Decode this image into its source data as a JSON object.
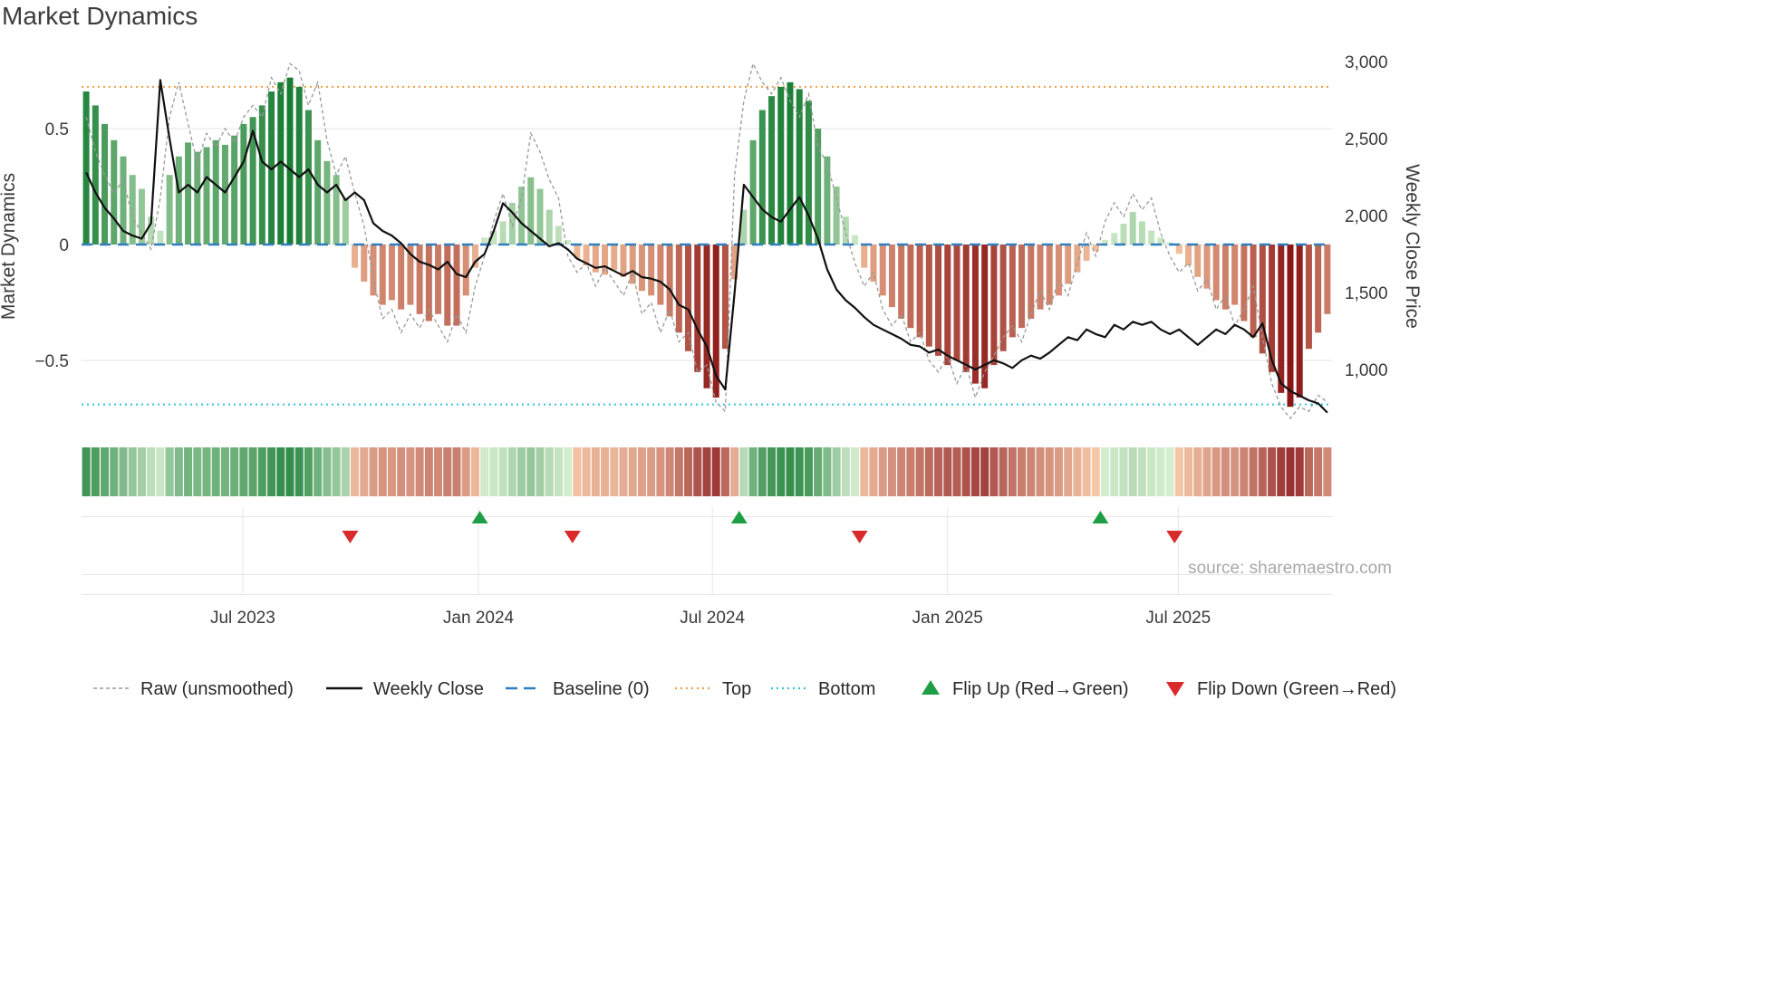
{
  "title": "Market Dynamics",
  "source": "source: sharemaestro.com",
  "y_left": {
    "label": "Market Dynamics",
    "ticks": [
      "0.5",
      "0",
      "−0.5"
    ],
    "tick_values": [
      0.5,
      0,
      -0.5
    ]
  },
  "y_right": {
    "label": "Weekly Close Price",
    "ticks": [
      "3,000",
      "2,500",
      "2,000",
      "1,500",
      "1,000"
    ],
    "tick_values": [
      3000,
      2500,
      2000,
      1500,
      1000
    ]
  },
  "x_ticks": [
    {
      "label": "Jul 2023",
      "week": 16.9
    },
    {
      "label": "Jan 2024",
      "week": 42.35
    },
    {
      "label": "Jul 2024",
      "week": 67.6
    },
    {
      "label": "Jan 2025",
      "week": 93.0
    },
    {
      "label": "Jul 2025",
      "week": 117.9
    }
  ],
  "legend": [
    {
      "type": "dashed-gray",
      "label": "Raw (unsmoothed)"
    },
    {
      "type": "solid-black",
      "label": "Weekly Close"
    },
    {
      "type": "dashed-blue",
      "label": "Baseline (0)"
    },
    {
      "type": "dotted-orange",
      "label": "Top"
    },
    {
      "type": "dotted-cyan",
      "label": "Bottom"
    },
    {
      "type": "triangle-up",
      "label": "Flip Up (Red→Green)"
    },
    {
      "type": "triangle-down",
      "label": "Flip Down (Green→Red)"
    }
  ],
  "colors": {
    "green_dark": "#177d32",
    "green_light": "#d2ecca",
    "red_dark": "#8b1515",
    "red_light": "#f8c7a1",
    "baseline": "#2f7ebe",
    "top": "#f0a04b",
    "bottom": "#35c0e0",
    "raw_line": "#999999",
    "close_line": "#111111",
    "flip_up": "#1e9e44",
    "flip_down": "#d92b2b",
    "grid": "#e6e6e6",
    "tick_text": "#3a3a3a",
    "source_text": "#a8a8a8",
    "legend_text": "#2a2a2a"
  },
  "chart_data": {
    "type": "bar+line",
    "x_unit": "week_index",
    "n_weeks": 135,
    "baseline": 0,
    "top_threshold": 0.68,
    "bottom_threshold": -0.69,
    "ylim_left": [
      -0.8,
      0.84
    ],
    "ylim_right": [
      680,
      3000
    ],
    "series": [
      {
        "name": "Market Dynamics (bars, smoothed)",
        "axis": "left",
        "values": [
          0.66,
          0.6,
          0.52,
          0.45,
          0.38,
          0.3,
          0.24,
          0.12,
          0.06,
          0.3,
          0.38,
          0.44,
          0.4,
          0.42,
          0.45,
          0.43,
          0.47,
          0.52,
          0.55,
          0.6,
          0.66,
          0.7,
          0.72,
          0.68,
          0.58,
          0.45,
          0.36,
          0.3,
          0.2,
          -0.1,
          -0.16,
          -0.22,
          -0.26,
          -0.24,
          -0.28,
          -0.26,
          -0.3,
          -0.33,
          -0.3,
          -0.35,
          -0.35,
          -0.22,
          -0.1,
          0.03,
          0.06,
          0.1,
          0.18,
          0.25,
          0.29,
          0.24,
          0.15,
          0.08,
          0.02,
          -0.06,
          -0.09,
          -0.12,
          -0.13,
          -0.11,
          -0.14,
          -0.17,
          -0.2,
          -0.22,
          -0.26,
          -0.31,
          -0.38,
          -0.46,
          -0.55,
          -0.62,
          -0.66,
          -0.45,
          -0.15,
          0.15,
          0.45,
          0.58,
          0.64,
          0.68,
          0.7,
          0.67,
          0.62,
          0.5,
          0.38,
          0.25,
          0.12,
          0.04,
          -0.1,
          -0.16,
          -0.22,
          -0.27,
          -0.32,
          -0.36,
          -0.4,
          -0.44,
          -0.48,
          -0.52,
          -0.5,
          -0.55,
          -0.6,
          -0.62,
          -0.52,
          -0.46,
          -0.4,
          -0.36,
          -0.32,
          -0.28,
          -0.26,
          -0.22,
          -0.17,
          -0.12,
          -0.07,
          -0.03,
          0.02,
          0.05,
          0.09,
          0.14,
          0.1,
          0.06,
          0.03,
          0.01,
          -0.04,
          -0.09,
          -0.14,
          -0.19,
          -0.24,
          -0.28,
          -0.26,
          -0.33,
          -0.4,
          -0.47,
          -0.55,
          -0.64,
          -0.7,
          -0.66,
          -0.45,
          -0.38,
          -0.3
        ]
      },
      {
        "name": "Raw (unsmoothed)",
        "axis": "left",
        "values": [
          0.55,
          0.4,
          0.3,
          0.22,
          0.28,
          0.12,
          0.05,
          -0.02,
          0.2,
          0.55,
          0.7,
          0.52,
          0.35,
          0.48,
          0.42,
          0.5,
          0.44,
          0.55,
          0.6,
          0.55,
          0.72,
          0.65,
          0.78,
          0.75,
          0.6,
          0.7,
          0.45,
          0.3,
          0.38,
          0.22,
          0.08,
          -0.15,
          -0.32,
          -0.28,
          -0.38,
          -0.3,
          -0.36,
          -0.28,
          -0.35,
          -0.42,
          -0.3,
          -0.38,
          -0.18,
          -0.05,
          0.1,
          0.22,
          0.08,
          0.2,
          0.48,
          0.4,
          0.28,
          0.2,
          -0.05,
          -0.12,
          -0.08,
          -0.18,
          -0.1,
          -0.16,
          -0.22,
          -0.12,
          -0.3,
          -0.25,
          -0.38,
          -0.28,
          -0.42,
          -0.38,
          -0.55,
          -0.52,
          -0.68,
          -0.72,
          0.3,
          0.62,
          0.78,
          0.7,
          0.65,
          0.72,
          0.62,
          0.55,
          0.65,
          0.42,
          0.35,
          0.2,
          0.05,
          -0.08,
          -0.18,
          -0.12,
          -0.28,
          -0.35,
          -0.3,
          -0.42,
          -0.38,
          -0.5,
          -0.55,
          -0.48,
          -0.6,
          -0.52,
          -0.66,
          -0.55,
          -0.48,
          -0.4,
          -0.35,
          -0.42,
          -0.3,
          -0.2,
          -0.28,
          -0.15,
          -0.22,
          -0.08,
          0.05,
          -0.05,
          0.1,
          0.18,
          0.12,
          0.22,
          0.15,
          0.2,
          0.05,
          -0.05,
          -0.12,
          -0.08,
          -0.2,
          -0.15,
          -0.28,
          -0.22,
          -0.35,
          -0.28,
          -0.18,
          -0.4,
          -0.6,
          -0.7,
          -0.75,
          -0.7,
          -0.72,
          -0.65,
          -0.68
        ]
      },
      {
        "name": "Weekly Close",
        "axis": "right",
        "values": [
          2280,
          2150,
          2050,
          1980,
          1900,
          1870,
          1850,
          1950,
          2880,
          2500,
          2150,
          2200,
          2150,
          2250,
          2200,
          2150,
          2250,
          2350,
          2550,
          2350,
          2300,
          2350,
          2300,
          2250,
          2300,
          2200,
          2150,
          2200,
          2100,
          2150,
          2100,
          1950,
          1900,
          1870,
          1820,
          1750,
          1700,
          1680,
          1650,
          1700,
          1620,
          1600,
          1700,
          1750,
          1900,
          2080,
          2020,
          1950,
          1900,
          1850,
          1800,
          1820,
          1780,
          1720,
          1690,
          1660,
          1670,
          1640,
          1610,
          1640,
          1600,
          1590,
          1570,
          1520,
          1420,
          1390,
          1260,
          1150,
          960,
          870,
          1500,
          2200,
          2120,
          2040,
          1990,
          1960,
          2040,
          2120,
          2000,
          1850,
          1650,
          1520,
          1450,
          1400,
          1340,
          1290,
          1260,
          1230,
          1200,
          1160,
          1150,
          1110,
          1130,
          1090,
          1060,
          1030,
          1000,
          1030,
          1060,
          1040,
          1010,
          1060,
          1090,
          1070,
          1110,
          1160,
          1210,
          1190,
          1260,
          1230,
          1210,
          1290,
          1260,
          1310,
          1290,
          1310,
          1260,
          1230,
          1260,
          1210,
          1160,
          1210,
          1260,
          1230,
          1290,
          1260,
          1210,
          1300,
          1060,
          910,
          860,
          830,
          800,
          780,
          720
        ]
      }
    ],
    "flip_up_weeks": [
      42.5,
      70.5,
      109.5
    ],
    "flip_down_weeks": [
      28.5,
      52.5,
      83.5,
      117.5
    ]
  }
}
